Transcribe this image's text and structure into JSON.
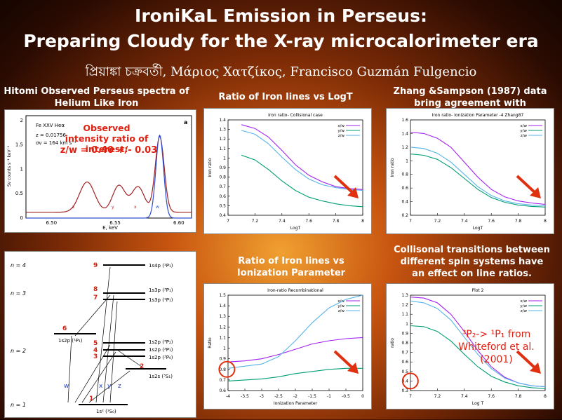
{
  "title": {
    "line1": "IroniKaL Emission in Perseus:",
    "line2": "Preparing Cloudy for the X-ray microcalorimeter era"
  },
  "authors": "প্রিয়াঙ্কা চক্রবর্তী, Μάριος Χατζίκος, Francisco Guzmán Fulgencio",
  "captions": {
    "hitomi": "Hitomi Observed Perseus spectra of Helium Like Iron",
    "logt": "Ratio of Iron lines vs LogT",
    "zhang": "Zhang &Sampson (1987) data bring agreement with observations",
    "ion": "Ratio of Iron lines vs Ionization Parameter",
    "collisional": "Collisonal transitions between different spin systems have an effect on line ratios."
  },
  "hitomi_panel": {
    "ion_label": "Fe XXV Heα",
    "z_label": "z = 0.01756",
    "sigma_label": "σv = 164 km s⁻¹",
    "panel_letter": "a",
    "ylabel": "Sv counts s⁻¹ keV⁻¹",
    "xlabel": "E, keV",
    "xticks": [
      "6.50",
      "6.55",
      "6.60"
    ],
    "yticks": [
      "0",
      "0.5",
      "1",
      "1.5",
      "2"
    ],
    "line_letters": [
      "z",
      "y",
      "x",
      "w"
    ],
    "observed_text": "Observed intensity ratio of interest:",
    "ratio_text": "z/w = 0.40 +/- 0.03"
  },
  "whiteford_text": "³P₂-> ¹P₁ from Whiteford et al. (2001)",
  "energy_diagram": {
    "n_labels": [
      "n = 4",
      "n = 3",
      "n = 2",
      "n = 1"
    ],
    "levels": [
      "1s4p (¹P₁)",
      "1s3p (³P₁)",
      "1s3p (¹P₁)",
      "1s2p (¹P₁)",
      "1s2p (³P₂)",
      "1s2p (³P₁)",
      "1s2p (³P₀)",
      "1s2s (³S₁)",
      "1s² (¹S₀)"
    ],
    "numbers": [
      "9",
      "8",
      "7",
      "6",
      "5",
      "4",
      "3",
      "2",
      "1"
    ],
    "letters": [
      "w",
      "x",
      "y",
      "z"
    ]
  },
  "chart_data": [
    {
      "type": "line",
      "title": "Iron ratio- Collisional case",
      "xlabel": "LogT",
      "ylabel": "Iron ratio",
      "xlim": [
        7,
        8
      ],
      "ylim": [
        0.4,
        1.4
      ],
      "xticks": [
        "7",
        "7.2",
        "7.4",
        "7.6",
        "7.8",
        "8"
      ],
      "yticks": [
        "0.4",
        "0.5",
        "0.6",
        "0.7",
        "0.8",
        "0.9",
        "1",
        "1.1",
        "1.2",
        "1.3",
        "1.4"
      ],
      "x": [
        7.1,
        7.2,
        7.3,
        7.4,
        7.5,
        7.6,
        7.7,
        7.8,
        7.9,
        8.0
      ],
      "series": [
        {
          "name": "x/w",
          "color": "#a020f0",
          "values": [
            1.35,
            1.31,
            1.22,
            1.08,
            0.93,
            0.82,
            0.75,
            0.7,
            0.68,
            0.67
          ]
        },
        {
          "name": "y/w",
          "color": "#009e73",
          "values": [
            1.03,
            0.98,
            0.88,
            0.76,
            0.66,
            0.59,
            0.55,
            0.52,
            0.5,
            0.49
          ]
        },
        {
          "name": "z/w",
          "color": "#56b4e9",
          "values": [
            1.29,
            1.25,
            1.15,
            1.01,
            0.88,
            0.78,
            0.72,
            0.69,
            0.67,
            0.66
          ]
        }
      ]
    },
    {
      "type": "line",
      "title": "Iron ratio- Ionization Parameter -4 Zhang87",
      "xlabel": "LogT",
      "ylabel": "Iron ratio",
      "xlim": [
        7,
        8
      ],
      "ylim": [
        0.2,
        1.6
      ],
      "xticks": [
        "7",
        "7.2",
        "7.4",
        "7.6",
        "7.8",
        "8"
      ],
      "yticks": [
        "0.2",
        "0.4",
        "0.6",
        "0.8",
        "1",
        "1.2",
        "1.4",
        "1.6"
      ],
      "x": [
        7.0,
        7.1,
        7.2,
        7.3,
        7.4,
        7.5,
        7.6,
        7.7,
        7.8,
        7.9,
        8.0
      ],
      "series": [
        {
          "name": "x/w",
          "color": "#a020f0",
          "values": [
            1.42,
            1.4,
            1.33,
            1.2,
            0.98,
            0.76,
            0.58,
            0.47,
            0.41,
            0.38,
            0.36
          ]
        },
        {
          "name": "y/w",
          "color": "#009e73",
          "values": [
            1.1,
            1.08,
            1.02,
            0.9,
            0.74,
            0.58,
            0.46,
            0.39,
            0.35,
            0.33,
            0.32
          ]
        },
        {
          "name": "z/w",
          "color": "#56b4e9",
          "values": [
            1.2,
            1.18,
            1.11,
            0.98,
            0.8,
            0.62,
            0.49,
            0.41,
            0.37,
            0.35,
            0.34
          ]
        }
      ]
    },
    {
      "type": "line",
      "title": "Iron-ratio Recombinational",
      "xlabel": "Ionization Parameter",
      "ylabel": "Ratio",
      "xlim": [
        -4,
        0
      ],
      "ylim": [
        0.6,
        1.5
      ],
      "xticks": [
        "-4",
        "-3.5",
        "-3",
        "-2.5",
        "-2",
        "-1.5",
        "-1",
        "-0.5",
        "0"
      ],
      "yticks": [
        "0.6",
        "0.7",
        "0.8",
        "0.9",
        "1",
        "1.1",
        "1.2",
        "1.3",
        "1.4",
        "1.5"
      ],
      "x": [
        -4,
        -3.5,
        -3,
        -2.5,
        -2,
        -1.5,
        -1,
        -0.5,
        0
      ],
      "series": [
        {
          "name": "x/w",
          "color": "#a020f0",
          "values": [
            0.87,
            0.88,
            0.9,
            0.94,
            0.99,
            1.04,
            1.07,
            1.09,
            1.1
          ]
        },
        {
          "name": "y/w",
          "color": "#009e73",
          "values": [
            0.69,
            0.7,
            0.71,
            0.73,
            0.76,
            0.78,
            0.8,
            0.81,
            0.81
          ]
        },
        {
          "name": "z/w",
          "color": "#56b4e9",
          "values": [
            0.81,
            0.83,
            0.85,
            0.92,
            1.07,
            1.24,
            1.38,
            1.46,
            1.5
          ]
        }
      ]
    },
    {
      "type": "line",
      "title": "Plot 2",
      "xlabel": "Log T",
      "ylabel": "ratio",
      "xlim": [
        7,
        8
      ],
      "ylim": [
        0.3,
        1.3
      ],
      "xticks": [
        "7",
        "7.2",
        "7.4",
        "7.6",
        "7.8",
        "8"
      ],
      "yticks": [
        "0.3",
        "0.4",
        "0.5",
        "0.6",
        "0.7",
        "0.8",
        "0.9",
        "1",
        "1.1",
        "1.2",
        "1.3"
      ],
      "x": [
        7.0,
        7.1,
        7.2,
        7.3,
        7.4,
        7.5,
        7.6,
        7.7,
        7.8,
        7.9,
        8.0
      ],
      "series": [
        {
          "name": "x/w",
          "color": "#a020f0",
          "values": [
            1.28,
            1.27,
            1.22,
            1.1,
            0.92,
            0.72,
            0.55,
            0.44,
            0.38,
            0.35,
            0.34
          ]
        },
        {
          "name": "y/w",
          "color": "#009e73",
          "values": [
            0.98,
            0.97,
            0.92,
            0.82,
            0.68,
            0.55,
            0.45,
            0.39,
            0.35,
            0.33,
            0.32
          ]
        },
        {
          "name": "z/w",
          "color": "#56b4e9",
          "values": [
            1.24,
            1.22,
            1.16,
            1.04,
            0.86,
            0.68,
            0.53,
            0.43,
            0.38,
            0.35,
            0.34
          ]
        }
      ]
    }
  ]
}
